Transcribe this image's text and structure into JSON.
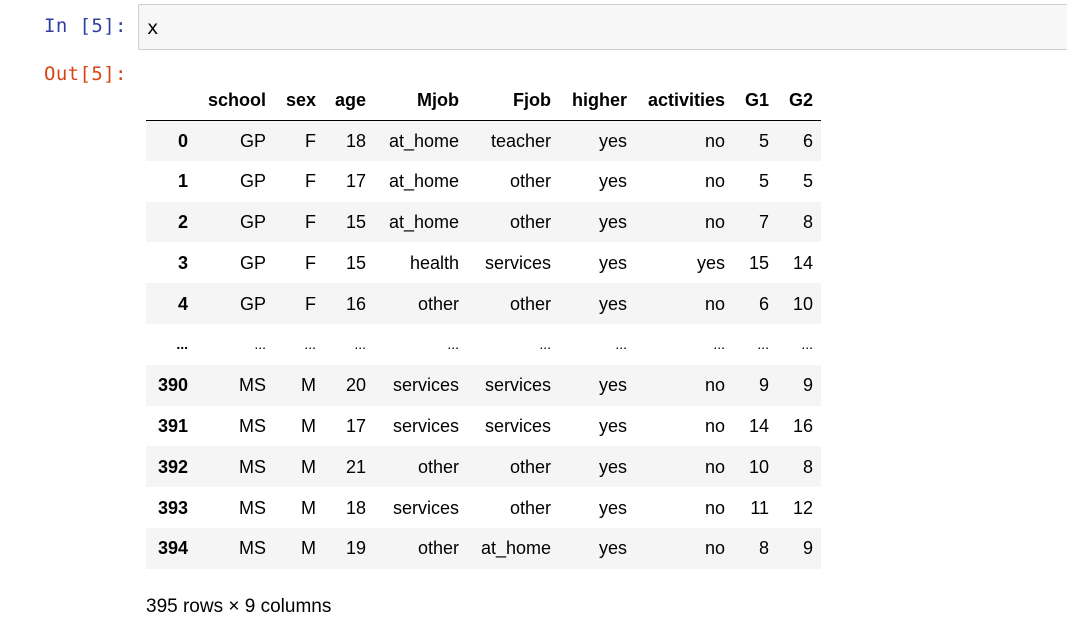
{
  "input_cell": {
    "prompt": "In [5]:",
    "code": "x"
  },
  "output_cell": {
    "prompt": "Out[5]:"
  },
  "dataframe": {
    "columns": [
      "",
      "school",
      "sex",
      "age",
      "Mjob",
      "Fjob",
      "higher",
      "activities",
      "G1",
      "G2"
    ],
    "rows": [
      [
        "0",
        "GP",
        "F",
        "18",
        "at_home",
        "teacher",
        "yes",
        "no",
        "5",
        "6"
      ],
      [
        "1",
        "GP",
        "F",
        "17",
        "at_home",
        "other",
        "yes",
        "no",
        "5",
        "5"
      ],
      [
        "2",
        "GP",
        "F",
        "15",
        "at_home",
        "other",
        "yes",
        "no",
        "7",
        "8"
      ],
      [
        "3",
        "GP",
        "F",
        "15",
        "health",
        "services",
        "yes",
        "yes",
        "15",
        "14"
      ],
      [
        "4",
        "GP",
        "F",
        "16",
        "other",
        "other",
        "yes",
        "no",
        "6",
        "10"
      ],
      [
        "...",
        "...",
        "...",
        "...",
        "...",
        "...",
        "...",
        "...",
        "...",
        "..."
      ],
      [
        "390",
        "MS",
        "M",
        "20",
        "services",
        "services",
        "yes",
        "no",
        "9",
        "9"
      ],
      [
        "391",
        "MS",
        "M",
        "17",
        "services",
        "services",
        "yes",
        "no",
        "14",
        "16"
      ],
      [
        "392",
        "MS",
        "M",
        "21",
        "other",
        "other",
        "yes",
        "no",
        "10",
        "8"
      ],
      [
        "393",
        "MS",
        "M",
        "18",
        "services",
        "other",
        "yes",
        "no",
        "11",
        "12"
      ],
      [
        "394",
        "MS",
        "M",
        "19",
        "other",
        "at_home",
        "yes",
        "no",
        "8",
        "9"
      ]
    ],
    "shape_text": "395 rows × 9 columns"
  }
}
